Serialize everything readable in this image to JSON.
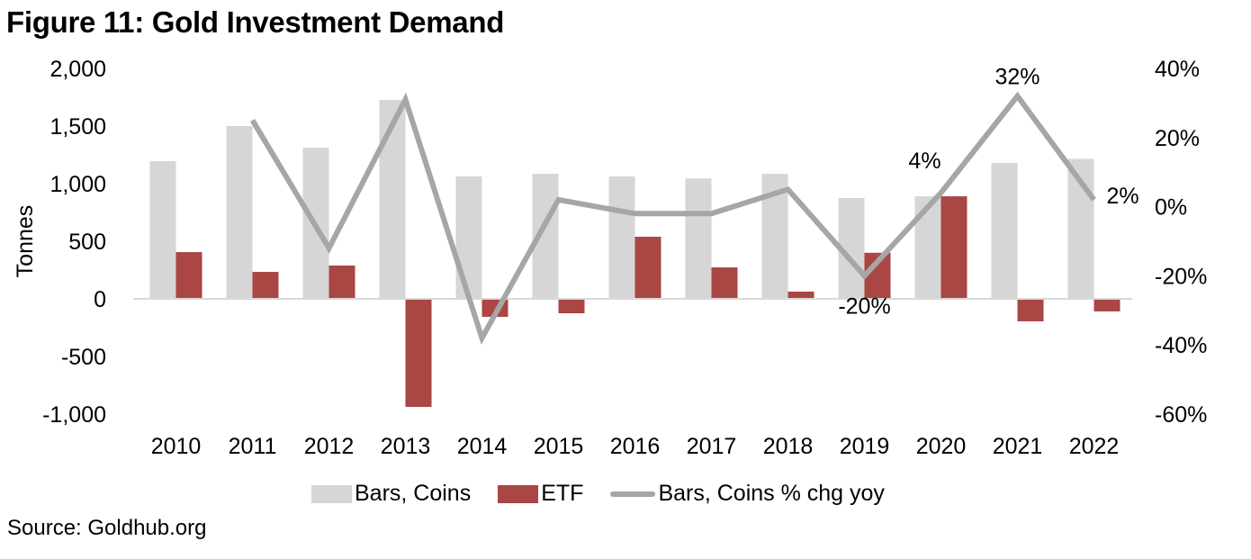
{
  "title": "Figure 11: Gold Investment Demand",
  "source": "Source: Goldhub.org",
  "colors": {
    "bars_coins": "#d6d6d6",
    "etf": "#aa4643",
    "yoy_line": "#a6a6a6",
    "axis": "#d9d9d9"
  },
  "chart_data": {
    "type": "bar",
    "title": "Figure 11: Gold Investment Demand",
    "xlabel": "",
    "ylabel": "Tonnes",
    "y2label": "",
    "categories": [
      "2010",
      "2011",
      "2012",
      "2013",
      "2014",
      "2015",
      "2016",
      "2017",
      "2018",
      "2019",
      "2020",
      "2021",
      "2022"
    ],
    "series": [
      {
        "name": "Bars, Coins",
        "type": "bar",
        "axis": "left",
        "values": [
          1195,
          1500,
          1312,
          1727,
          1062,
          1085,
          1062,
          1045,
          1085,
          875,
          890,
          1180,
          1215
        ]
      },
      {
        "name": "ETF",
        "type": "bar",
        "axis": "left",
        "values": [
          406,
          234,
          289,
          -938,
          -156,
          -125,
          539,
          273,
          63,
          400,
          890,
          -195,
          -109
        ]
      },
      {
        "name": "Bars, Coins % chg yoy",
        "type": "line",
        "axis": "right",
        "values": [
          null,
          25,
          -12,
          31,
          -38,
          2,
          -2,
          -2,
          5,
          -20,
          4,
          32,
          2
        ]
      }
    ],
    "ylim": [
      -1000,
      2000
    ],
    "yticks": [
      2000,
      1500,
      1000,
      500,
      0,
      -500,
      -1000
    ],
    "ytick_labels": [
      "2,000",
      "1,500",
      "1,000",
      "500",
      "0",
      "-500",
      "-1,000"
    ],
    "y2lim": [
      -60,
      40
    ],
    "y2ticks": [
      40,
      20,
      0,
      -20,
      -40,
      -60
    ],
    "y2tick_labels": [
      "40%",
      "20%",
      "0%",
      "-20%",
      "-40%",
      "-60%"
    ],
    "annotations": [
      {
        "category": "2019",
        "text": "-20%"
      },
      {
        "category": "2020",
        "text": "4%"
      },
      {
        "category": "2021",
        "text": "32%"
      },
      {
        "category": "2022",
        "text": "2%"
      }
    ],
    "grid": false,
    "legend": "bottom"
  },
  "legend": [
    {
      "label": "Bars, Coins"
    },
    {
      "label": "ETF"
    },
    {
      "label": "Bars, Coins % chg yoy"
    }
  ]
}
